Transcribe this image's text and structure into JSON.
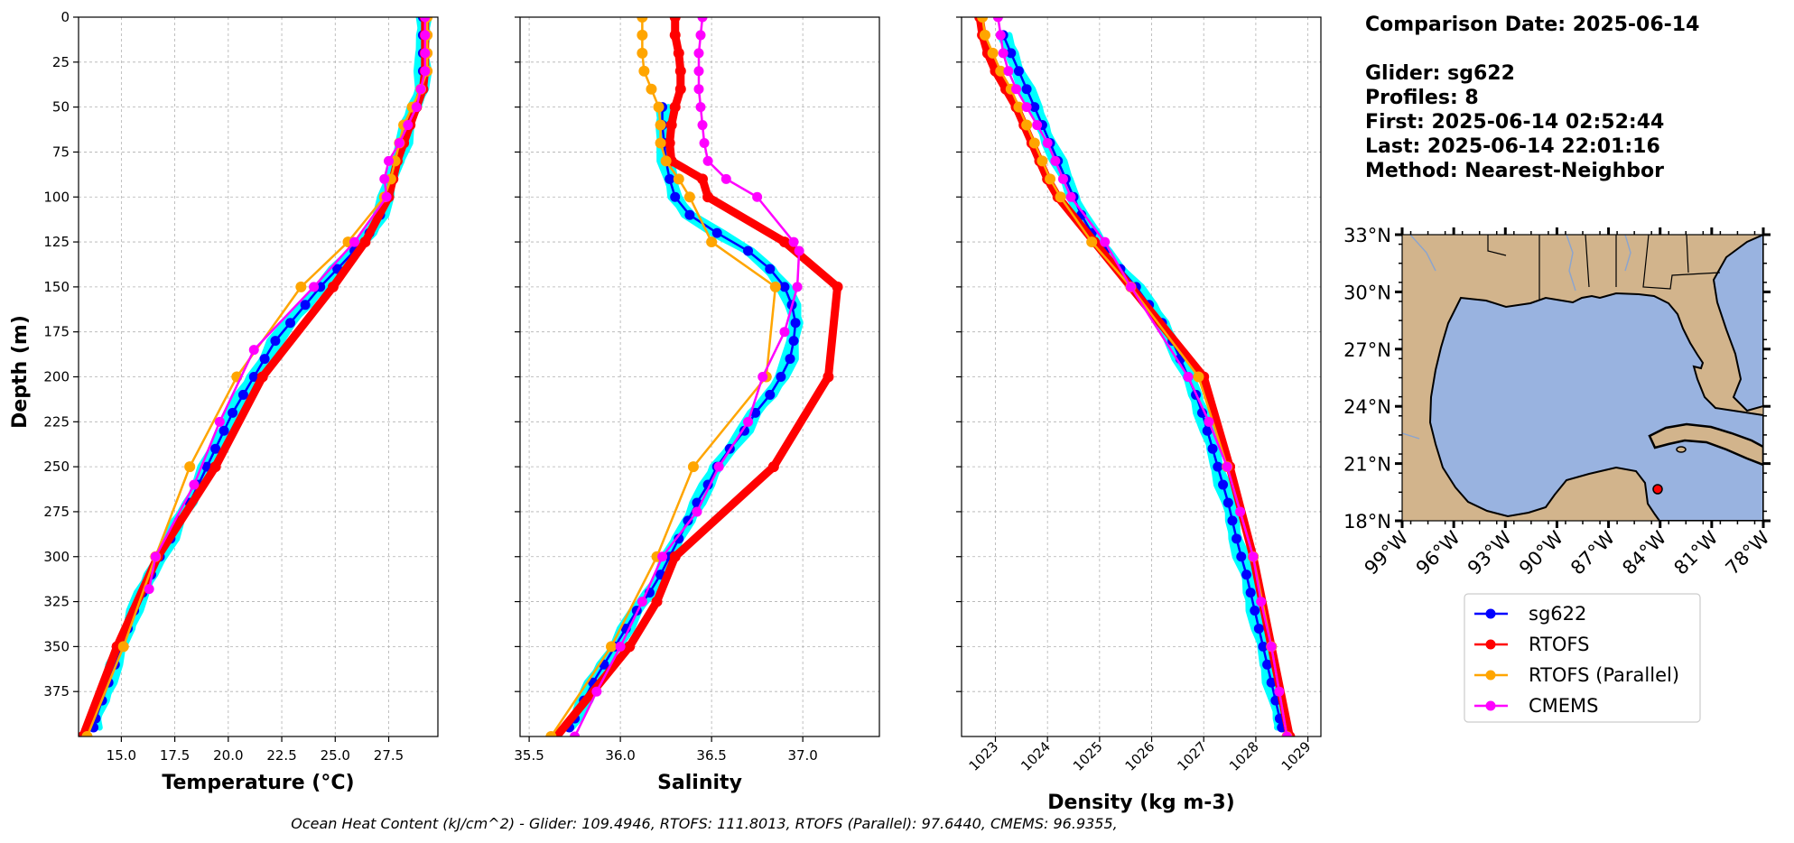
{
  "info": {
    "comparison_date": "Comparison Date: 2025-06-14",
    "glider": "Glider: sg622",
    "profiles": "Profiles: 8",
    "first": "First: 2025-06-14 02:52:44",
    "last": "Last: 2025-06-14 22:01:16",
    "method": "Method: Nearest-Neighbor"
  },
  "footer": "Ocean Heat Content (kJ/cm^2) - Glider: 109.4946,  RTOFS: 111.8013,  RTOFS (Parallel): 97.6440,  CMEMS: 96.9355,",
  "colors": {
    "sg622": "#0000ff",
    "rtofs": "#ff0000",
    "rtofs_parallel": "#ffa500",
    "cmems": "#ff00ff",
    "glider_profiles": "#00ffff",
    "land": "#d2b48c",
    "ocean": "#99b3e0",
    "grid": "#b0b0b0"
  },
  "legend": [
    "sg622",
    "RTOFS",
    "RTOFS (Parallel)",
    "CMEMS"
  ],
  "chart_data": [
    {
      "type": "line",
      "xlabel": "Temperature (°C)",
      "ylabel": "Depth (m)",
      "xlim": [
        13.0,
        29.8
      ],
      "ylim": [
        400,
        0
      ],
      "xticks": [
        15.0,
        17.5,
        20.0,
        22.5,
        25.0,
        27.5
      ],
      "xtick_labels": [
        "15.0",
        "17.5",
        "20.0",
        "22.5",
        "25.0",
        "27.5"
      ],
      "yticks": [
        0,
        25,
        50,
        75,
        100,
        125,
        150,
        175,
        200,
        225,
        250,
        275,
        300,
        325,
        350,
        375
      ],
      "grid": true,
      "series": [
        {
          "name": "sg622",
          "depth": [
            0,
            10,
            20,
            30,
            40,
            50,
            60,
            70,
            80,
            90,
            100,
            110,
            120,
            130,
            140,
            150,
            160,
            170,
            180,
            190,
            200,
            210,
            220,
            230,
            240,
            250,
            260,
            270,
            280,
            290,
            300,
            310,
            320,
            330,
            340,
            350,
            360,
            370,
            380,
            390,
            395
          ],
          "values": [
            29.1,
            29.1,
            29.1,
            29.1,
            29.0,
            28.7,
            28.4,
            28.2,
            27.9,
            27.6,
            27.4,
            27.1,
            26.6,
            25.9,
            25.1,
            24.3,
            23.6,
            22.9,
            22.2,
            21.7,
            21.2,
            20.7,
            20.2,
            19.8,
            19.4,
            19.0,
            18.6,
            18.2,
            17.7,
            17.3,
            16.8,
            16.4,
            16.0,
            15.6,
            15.3,
            15.0,
            14.7,
            14.4,
            14.1,
            13.8,
            13.7
          ]
        },
        {
          "name": "RTOFS",
          "depth": [
            0,
            10,
            20,
            30,
            40,
            50,
            60,
            70,
            80,
            90,
            100,
            125,
            150,
            200,
            250,
            300,
            350,
            400
          ],
          "values": [
            29.2,
            29.2,
            29.2,
            29.2,
            29.1,
            28.8,
            28.5,
            28.2,
            27.9,
            27.7,
            27.5,
            26.4,
            24.9,
            21.6,
            19.4,
            16.7,
            14.8,
            13.2
          ]
        },
        {
          "name": "RTOFS (Parallel)",
          "depth": [
            0,
            10,
            20,
            30,
            40,
            50,
            60,
            70,
            80,
            90,
            100,
            125,
            150,
            200,
            250,
            300,
            350,
            400
          ],
          "values": [
            29.3,
            29.3,
            29.3,
            29.3,
            29.0,
            28.6,
            28.2,
            28.0,
            27.8,
            27.6,
            27.3,
            25.6,
            23.4,
            20.4,
            18.2,
            16.6,
            15.1,
            13.4
          ]
        },
        {
          "name": "CMEMS",
          "depth": [
            0,
            10,
            20,
            30,
            40,
            50,
            60,
            70,
            80,
            90,
            100,
            125,
            150,
            185,
            225,
            260,
            300,
            318
          ],
          "values": [
            29.2,
            29.2,
            29.2,
            29.2,
            29.0,
            28.8,
            28.4,
            28.0,
            27.5,
            27.3,
            27.4,
            25.9,
            24.0,
            21.2,
            19.6,
            18.4,
            16.6,
            16.3
          ]
        }
      ]
    },
    {
      "type": "line",
      "xlabel": "Salinity",
      "ylabel": "",
      "xlim": [
        35.45,
        37.42
      ],
      "ylim": [
        400,
        0
      ],
      "xticks": [
        35.5,
        36.0,
        36.5,
        37.0
      ],
      "xtick_labels": [
        "35.5",
        "36.0",
        "36.5",
        "37.0"
      ],
      "yticks": [
        0,
        25,
        50,
        75,
        100,
        125,
        150,
        175,
        200,
        225,
        250,
        275,
        300,
        325,
        350,
        375
      ],
      "grid": true,
      "series": [
        {
          "name": "sg622",
          "depth": [
            50,
            60,
            70,
            80,
            90,
            100,
            110,
            120,
            130,
            140,
            150,
            160,
            170,
            180,
            190,
            200,
            210,
            220,
            230,
            240,
            250,
            260,
            270,
            280,
            290,
            300,
            310,
            320,
            330,
            340,
            350,
            360,
            370,
            380,
            390,
            395
          ],
          "values": [
            36.23,
            36.23,
            36.24,
            36.25,
            36.27,
            36.3,
            36.38,
            36.53,
            36.7,
            36.82,
            36.9,
            36.94,
            36.96,
            36.95,
            36.93,
            36.88,
            36.82,
            36.74,
            36.68,
            36.6,
            36.53,
            36.48,
            36.42,
            36.37,
            36.32,
            36.27,
            36.22,
            36.16,
            36.09,
            36.03,
            35.97,
            35.91,
            35.85,
            35.8,
            35.75,
            35.72
          ]
        },
        {
          "name": "RTOFS",
          "depth": [
            0,
            10,
            20,
            30,
            40,
            50,
            60,
            70,
            80,
            90,
            100,
            125,
            150,
            200,
            250,
            300,
            325,
            350,
            400
          ],
          "values": [
            36.3,
            36.3,
            36.32,
            36.33,
            36.33,
            36.3,
            36.28,
            36.27,
            36.28,
            36.45,
            36.48,
            36.9,
            37.19,
            37.14,
            36.84,
            36.3,
            36.2,
            36.05,
            35.65
          ]
        },
        {
          "name": "RTOFS (Parallel)",
          "depth": [
            0,
            10,
            20,
            30,
            40,
            50,
            60,
            70,
            80,
            90,
            100,
            125,
            150,
            200,
            250,
            300,
            350,
            400
          ],
          "values": [
            36.12,
            36.12,
            36.12,
            36.13,
            36.17,
            36.21,
            36.22,
            36.22,
            36.25,
            36.32,
            36.38,
            36.5,
            36.85,
            36.8,
            36.4,
            36.2,
            35.95,
            35.62
          ]
        },
        {
          "name": "CMEMS",
          "depth": [
            0,
            10,
            20,
            30,
            40,
            50,
            60,
            70,
            80,
            90,
            100,
            125,
            130,
            150,
            175,
            200,
            225,
            250,
            275,
            300,
            325,
            350,
            375,
            400
          ],
          "values": [
            36.45,
            36.44,
            36.43,
            36.43,
            36.43,
            36.44,
            36.45,
            36.46,
            36.48,
            36.58,
            36.75,
            36.95,
            36.98,
            36.97,
            36.9,
            36.78,
            36.7,
            36.54,
            36.42,
            36.23,
            36.12,
            36.0,
            35.87,
            35.75
          ]
        }
      ]
    },
    {
      "type": "line",
      "xlabel": "Density (kg m-3)",
      "ylabel": "",
      "xlim": [
        1022.35,
        1029.25
      ],
      "ylim": [
        400,
        0
      ],
      "xticks": [
        1023,
        1024,
        1025,
        1026,
        1027,
        1028,
        1029
      ],
      "xtick_labels": [
        "1023",
        "1024",
        "1025",
        "1026",
        "1027",
        "1028",
        "1029"
      ],
      "yticks": [
        0,
        25,
        50,
        75,
        100,
        125,
        150,
        175,
        200,
        225,
        250,
        275,
        300,
        325,
        350,
        375
      ],
      "grid": true,
      "series": [
        {
          "name": "sg622",
          "depth": [
            10,
            20,
            30,
            40,
            50,
            60,
            70,
            80,
            90,
            100,
            110,
            120,
            130,
            140,
            150,
            160,
            170,
            180,
            190,
            200,
            210,
            220,
            230,
            240,
            250,
            260,
            270,
            280,
            290,
            300,
            310,
            320,
            330,
            340,
            350,
            360,
            370,
            380,
            390,
            395
          ],
          "values": [
            1023.15,
            1023.3,
            1023.45,
            1023.6,
            1023.75,
            1023.9,
            1024.05,
            1024.2,
            1024.35,
            1024.5,
            1024.65,
            1024.85,
            1025.1,
            1025.4,
            1025.7,
            1025.95,
            1026.2,
            1026.4,
            1026.55,
            1026.7,
            1026.85,
            1026.97,
            1027.07,
            1027.17,
            1027.27,
            1027.37,
            1027.47,
            1027.55,
            1027.63,
            1027.72,
            1027.82,
            1027.9,
            1027.98,
            1028.06,
            1028.14,
            1028.22,
            1028.3,
            1028.38,
            1028.46,
            1028.5
          ]
        },
        {
          "name": "RTOFS",
          "depth": [
            0,
            10,
            20,
            30,
            40,
            50,
            60,
            70,
            80,
            90,
            100,
            125,
            150,
            200,
            250,
            300,
            350,
            400
          ],
          "values": [
            1022.7,
            1022.75,
            1022.85,
            1023.0,
            1023.2,
            1023.4,
            1023.55,
            1023.7,
            1023.85,
            1024.0,
            1024.2,
            1024.9,
            1025.6,
            1027.0,
            1027.5,
            1027.95,
            1028.3,
            1028.65
          ]
        },
        {
          "name": "RTOFS (Parallel)",
          "depth": [
            0,
            10,
            20,
            30,
            40,
            50,
            60,
            70,
            80,
            90,
            100,
            125,
            150,
            200,
            250,
            300,
            350,
            400
          ],
          "values": [
            1022.75,
            1022.8,
            1022.95,
            1023.1,
            1023.3,
            1023.45,
            1023.6,
            1023.75,
            1023.9,
            1024.05,
            1024.25,
            1024.85,
            1025.6,
            1026.9,
            1027.45,
            1027.95,
            1028.3,
            1028.6
          ]
        },
        {
          "name": "CMEMS",
          "depth": [
            0,
            10,
            20,
            30,
            40,
            50,
            60,
            70,
            80,
            90,
            100,
            125,
            150,
            200,
            225,
            250,
            275,
            300,
            325,
            350,
            375,
            400
          ],
          "values": [
            1023.05,
            1023.1,
            1023.15,
            1023.25,
            1023.4,
            1023.6,
            1023.8,
            1024.0,
            1024.15,
            1024.3,
            1024.45,
            1025.1,
            1025.6,
            1026.7,
            1027.1,
            1027.45,
            1027.7,
            1027.95,
            1028.1,
            1028.3,
            1028.45,
            1028.6
          ]
        }
      ]
    },
    {
      "type": "map",
      "lat_ticks": [
        "33°N",
        "30°N",
        "27°N",
        "24°N",
        "21°N",
        "18°N"
      ],
      "lon_ticks": [
        "99°W",
        "96°W",
        "93°W",
        "90°W",
        "87°W",
        "84°W",
        "81°W",
        "78°W"
      ],
      "lat_range": [
        18,
        33
      ],
      "lon_range": [
        -99,
        -78
      ],
      "glider_location": {
        "lon": -86.3,
        "lat": 19.7
      }
    }
  ]
}
